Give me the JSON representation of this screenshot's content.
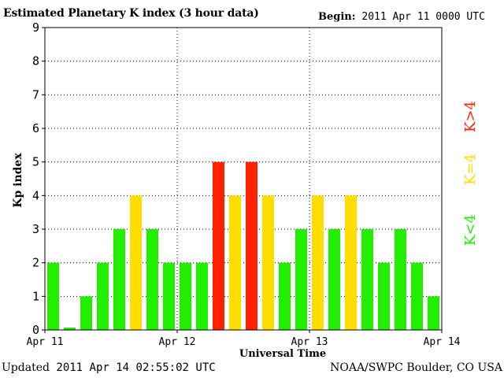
{
  "header": {
    "title": "Estimated Planetary K index (3 hour data)",
    "begin_label": "Begin:",
    "begin_value": "2011 Apr 11 0000 UTC"
  },
  "footer": {
    "updated_label": "Updated",
    "updated_value": "2011 Apr 14 02:55:02 UTC",
    "source": "NOAA/SWPC Boulder, CO USA"
  },
  "legend": [
    {
      "label": "K<4",
      "color": "#22ee00"
    },
    {
      "label": "K=4",
      "color": "#ffdd00"
    },
    {
      "label": "K>4",
      "color": "#ff2200"
    }
  ],
  "chart_data": {
    "type": "bar",
    "title": "Estimated Planetary K index (3 hour data)",
    "xlabel": "Universal Time",
    "ylabel": "Kp index",
    "ylim": [
      0,
      9
    ],
    "yticks": [
      0,
      1,
      2,
      3,
      4,
      5,
      6,
      7,
      8,
      9
    ],
    "xticks": [
      "Apr 11",
      "Apr 12",
      "Apr 13",
      "Apr 14"
    ],
    "grid": true,
    "interval_hours": 3,
    "values": [
      2,
      0,
      1,
      2,
      3,
      4,
      3,
      2,
      2,
      2,
      5,
      4,
      5,
      4,
      2,
      3,
      4,
      3,
      4,
      3,
      2,
      3,
      2,
      1
    ],
    "colors": {
      "low": "#22ee00",
      "equal": "#ffdd00",
      "high": "#ff2200"
    }
  }
}
